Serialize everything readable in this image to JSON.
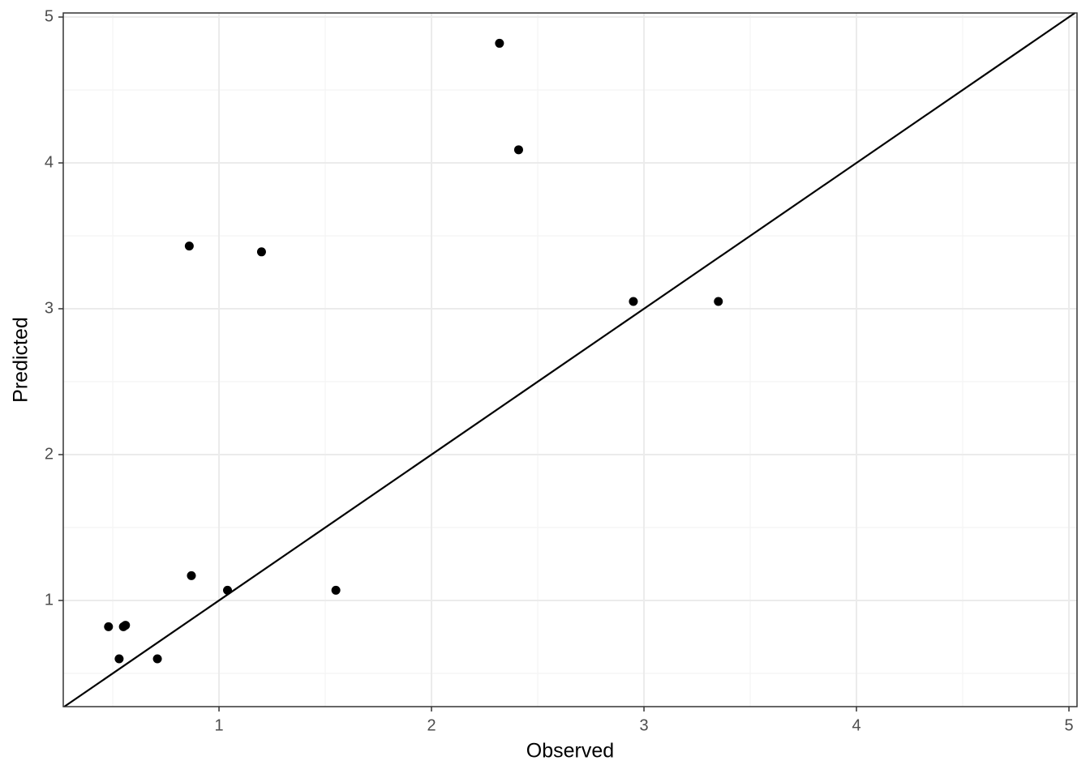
{
  "chart_data": {
    "type": "scatter",
    "x_label": "Observed",
    "y_label": "Predicted",
    "x": [
      0.48,
      0.53,
      0.55,
      0.56,
      0.71,
      0.86,
      0.87,
      1.04,
      1.2,
      1.55,
      2.32,
      2.41,
      2.95,
      3.35
    ],
    "values": [
      0.82,
      0.6,
      0.82,
      0.83,
      0.6,
      3.43,
      1.17,
      1.07,
      3.39,
      1.07,
      4.82,
      4.09,
      3.05,
      3.05
    ],
    "color": "#000000",
    "xlim": [
      0.267,
      5.038
    ],
    "ylim": [
      0.272,
      5.028
    ],
    "xticks": [
      1,
      2,
      3,
      4,
      5
    ],
    "yticks": [
      1,
      2,
      3,
      4,
      5
    ],
    "grid": true,
    "minor_grid": true,
    "identity_line": true
  }
}
